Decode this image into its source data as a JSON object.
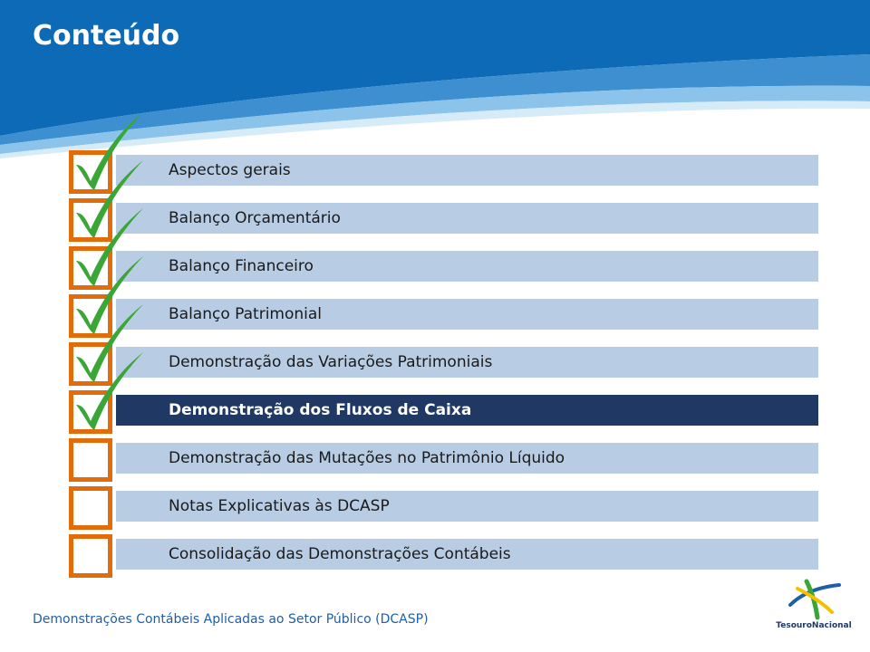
{
  "slide": {
    "title": "Conteúdo",
    "footer": "Demonstrações Contábeis Aplicadas ao Setor Público (DCASP)",
    "logo_text": "TesouroNacional"
  },
  "colors": {
    "header_blue": "#0d6ab6",
    "bar_light": "#b8cce4",
    "bar_active": "#1f3864",
    "checkbox_border": "#e36c0a",
    "check_green": "#3aa635"
  },
  "items": [
    {
      "label": "Aspectos gerais",
      "checked": true,
      "active": false
    },
    {
      "label": "Balanço Orçamentário",
      "checked": true,
      "active": false
    },
    {
      "label": "Balanço Financeiro",
      "checked": true,
      "active": false
    },
    {
      "label": "Balanço Patrimonial",
      "checked": true,
      "active": false
    },
    {
      "label": "Demonstração das Variações Patrimoniais",
      "checked": true,
      "active": false
    },
    {
      "label": "Demonstração dos Fluxos de Caixa",
      "checked": true,
      "active": true
    },
    {
      "label": "Demonstração das Mutações no Patrimônio Líquido",
      "checked": false,
      "active": false
    },
    {
      "label": "Notas Explicativas às DCASP",
      "checked": false,
      "active": false
    },
    {
      "label": "Consolidação das Demonstrações Contábeis",
      "checked": false,
      "active": false
    }
  ]
}
